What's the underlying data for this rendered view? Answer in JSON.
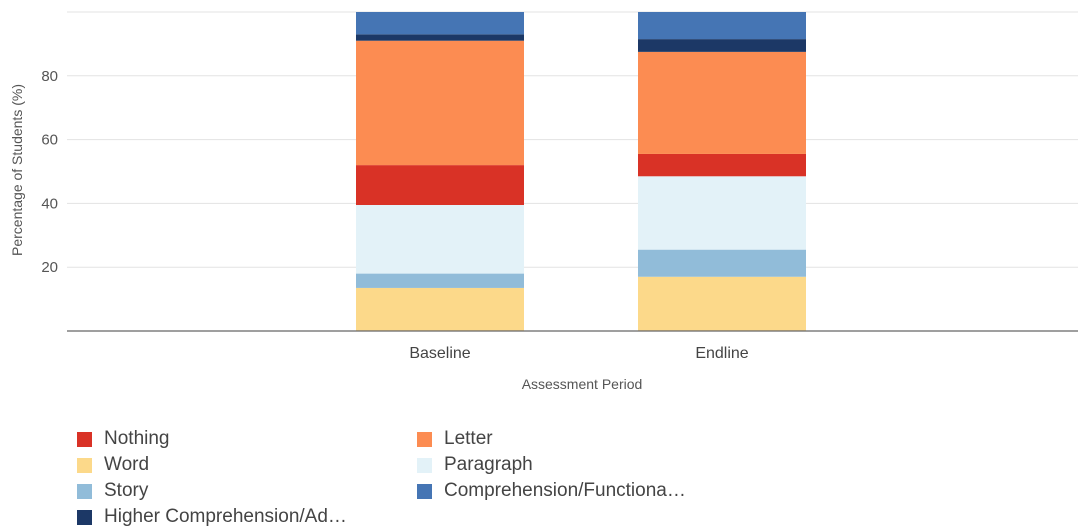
{
  "chart_data": {
    "type": "bar",
    "stacked": true,
    "categories": [
      "Baseline",
      "Endline"
    ],
    "xlabel": "Assessment Period",
    "ylabel": "Percentage of Students (%)",
    "ylim": [
      0,
      100
    ],
    "yticks": [
      20,
      40,
      60,
      80
    ],
    "grid": true,
    "legend_position": "bottom-left",
    "series": [
      {
        "name": "Word",
        "color": "#fcd98a",
        "values": [
          13.5,
          17
        ]
      },
      {
        "name": "Story",
        "color": "#91bcd9",
        "values": [
          4.5,
          8.5
        ]
      },
      {
        "name": "Paragraph",
        "color": "#e3f2f8",
        "values": [
          21.5,
          23
        ]
      },
      {
        "name": "Nothing",
        "color": "#d93226",
        "values": [
          12.5,
          7
        ]
      },
      {
        "name": "Letter",
        "color": "#fc8c52",
        "values": [
          39,
          32
        ]
      },
      {
        "name": "Higher Comprehension/Ad…",
        "color": "#1c3866",
        "values": [
          2,
          4
        ]
      },
      {
        "name": "Comprehension/Functiona…",
        "color": "#4575b4",
        "values": [
          7,
          8.5
        ]
      }
    ],
    "legend": [
      {
        "name": "Nothing",
        "color": "#d93226"
      },
      {
        "name": "Letter",
        "color": "#fc8c52"
      },
      {
        "name": "Word",
        "color": "#fcd98a"
      },
      {
        "name": "Paragraph",
        "color": "#e3f2f8"
      },
      {
        "name": "Story",
        "color": "#91bcd9"
      },
      {
        "name": "Comprehension/Functiona…",
        "color": "#4575b4"
      },
      {
        "name": "Higher Comprehension/Ad…",
        "color": "#1c3866"
      }
    ]
  }
}
